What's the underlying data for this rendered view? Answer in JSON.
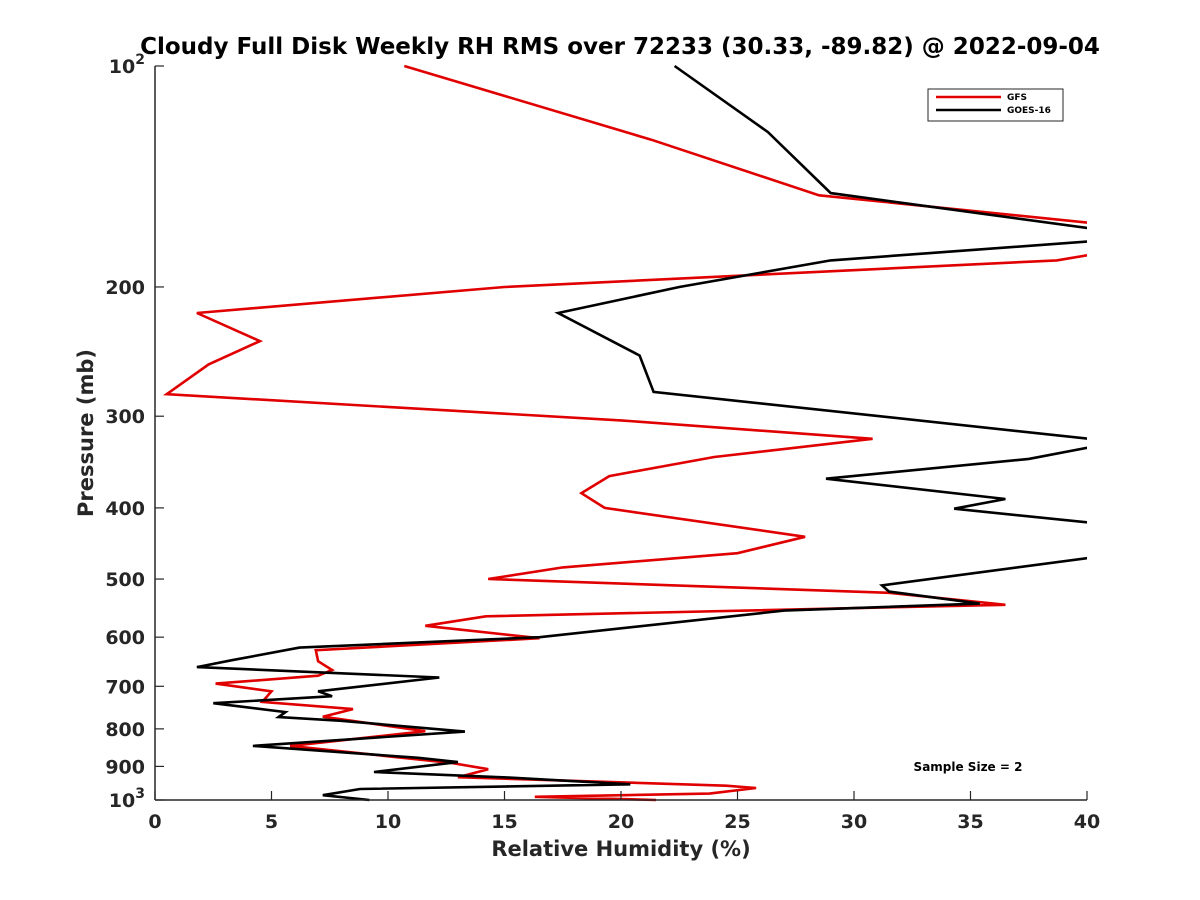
{
  "chart_data": {
    "type": "line",
    "title": "Cloudy Full Disk Weekly RH RMS over 72233 (30.33, -89.82) @ 2022-09-04",
    "xlabel": "Relative Humidity (%)",
    "ylabel": "Pressure (mb)",
    "xlim": [
      0,
      40
    ],
    "ylim": [
      100,
      1000
    ],
    "yscale": "log",
    "y_reversed": true,
    "grid": false,
    "legend_position": "top-right",
    "x_ticks": [
      0,
      5,
      10,
      15,
      20,
      25,
      30,
      35,
      40
    ],
    "x_tick_labels": [
      "0",
      "5",
      "10",
      "15",
      "20",
      "25",
      "30",
      "35",
      "40"
    ],
    "y_ticks": [
      100,
      200,
      300,
      400,
      500,
      600,
      700,
      800,
      900,
      1000
    ],
    "y_tick_labels": [
      {
        "value": 100,
        "base": "10",
        "exp": "2"
      },
      {
        "value": 200,
        "base": "200",
        "exp": ""
      },
      {
        "value": 300,
        "base": "300",
        "exp": ""
      },
      {
        "value": 400,
        "base": "400",
        "exp": ""
      },
      {
        "value": 500,
        "base": "500",
        "exp": ""
      },
      {
        "value": 600,
        "base": "600",
        "exp": ""
      },
      {
        "value": 700,
        "base": "700",
        "exp": ""
      },
      {
        "value": 800,
        "base": "800",
        "exp": ""
      },
      {
        "value": 900,
        "base": "900",
        "exp": ""
      },
      {
        "value": 1000,
        "base": "10",
        "exp": "3"
      }
    ],
    "annotation": "Sample Size = 2",
    "series": [
      {
        "name": "GFS",
        "color": "#e00000",
        "points": [
          [
            10.7,
            100
          ],
          [
            21.3,
            126
          ],
          [
            28.5,
            150
          ],
          [
            40.5,
            164
          ],
          [
            40.5,
            180
          ],
          [
            38.7,
            184
          ],
          [
            15.0,
            200
          ],
          [
            1.8,
            217
          ],
          [
            4.5,
            237
          ],
          [
            2.3,
            255
          ],
          [
            0.5,
            280
          ],
          [
            20.0,
            304
          ],
          [
            30.8,
            322
          ],
          [
            24.0,
            341
          ],
          [
            19.5,
            362
          ],
          [
            18.3,
            382
          ],
          [
            19.3,
            400
          ],
          [
            27.9,
            438
          ],
          [
            25.0,
            461
          ],
          [
            17.5,
            482
          ],
          [
            14.3,
            500
          ],
          [
            31.5,
            522
          ],
          [
            36.5,
            542
          ],
          [
            14.2,
            562
          ],
          [
            11.6,
            579
          ],
          [
            16.5,
            602
          ],
          [
            6.9,
            625
          ],
          [
            7.0,
            647
          ],
          [
            7.6,
            665
          ],
          [
            7.0,
            677
          ],
          [
            2.6,
            694
          ],
          [
            5.0,
            711
          ],
          [
            4.6,
            735
          ],
          [
            8.5,
            752
          ],
          [
            7.2,
            770
          ],
          [
            11.6,
            806
          ],
          [
            5.8,
            844
          ],
          [
            12.7,
            890
          ],
          [
            14.3,
            908
          ],
          [
            13.0,
            931
          ],
          [
            24.5,
            956
          ],
          [
            25.8,
            963
          ],
          [
            23.8,
            980
          ],
          [
            16.3,
            990
          ],
          [
            21.5,
            1000
          ]
        ]
      },
      {
        "name": "GOES-16",
        "color": "#000000",
        "points": [
          [
            22.3,
            100
          ],
          [
            26.3,
            123
          ],
          [
            29.0,
            149
          ],
          [
            40.5,
            167
          ],
          [
            40.5,
            173
          ],
          [
            29.0,
            184
          ],
          [
            22.5,
            200
          ],
          [
            17.3,
            217
          ],
          [
            20.8,
            248
          ],
          [
            21.4,
            278
          ],
          [
            40.5,
            323
          ],
          [
            40.5,
            329
          ],
          [
            37.5,
            343
          ],
          [
            28.8,
            365
          ],
          [
            36.5,
            389
          ],
          [
            34.3,
            401
          ],
          [
            40.5,
            420
          ],
          [
            40.5,
            466
          ],
          [
            31.2,
            510
          ],
          [
            31.5,
            520
          ],
          [
            35.4,
            540
          ],
          [
            27.0,
            552
          ],
          [
            16.5,
            600
          ],
          [
            6.2,
            620
          ],
          [
            3.3,
            645
          ],
          [
            1.8,
            659
          ],
          [
            12.2,
            681
          ],
          [
            7.0,
            711
          ],
          [
            7.6,
            722
          ],
          [
            2.5,
            738
          ],
          [
            5.6,
            759
          ],
          [
            5.3,
            771
          ],
          [
            8.0,
            780
          ],
          [
            13.3,
            807
          ],
          [
            4.2,
            844
          ],
          [
            11.3,
            876
          ],
          [
            13.0,
            888
          ],
          [
            9.4,
            916
          ],
          [
            15.2,
            932
          ],
          [
            20.4,
            952
          ],
          [
            8.8,
            966
          ],
          [
            7.2,
            985
          ],
          [
            9.2,
            1000
          ]
        ]
      }
    ]
  }
}
